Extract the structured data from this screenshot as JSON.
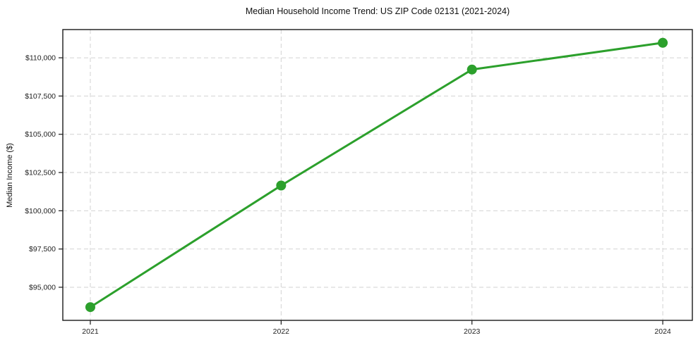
{
  "chart_data": {
    "type": "line",
    "title": "Median Household Income Trend: US ZIP Code 02131 (2021-2024)",
    "xlabel": "",
    "ylabel": "Median Income ($)",
    "categories": [
      "2021",
      "2022",
      "2023",
      "2024"
    ],
    "series": [
      {
        "name": "Median Household Income",
        "values": [
          93700,
          101650,
          109230,
          110980
        ],
        "color": "#2ca02c"
      }
    ],
    "ylim": [
      92836,
      111844
    ],
    "yticks": {
      "values": [
        95000,
        97500,
        100000,
        102500,
        105000,
        107500,
        110000
      ],
      "labels": [
        "$95,000",
        "$97,500",
        "$100,000",
        "$102,500",
        "$105,000",
        "$107,500",
        "$110,000"
      ]
    },
    "grid": {
      "show": true,
      "style": "dashed",
      "color": "#d2d2d2"
    },
    "legend": {
      "show": false
    },
    "marker": "circle",
    "marker_size": 7,
    "line_width": 3
  },
  "style": {
    "background": "#ffffff",
    "spine_color": "#1a1a1a",
    "tick_color": "#1a1a1a",
    "tick_label_color": "#222222",
    "title_color": "#111111"
  }
}
